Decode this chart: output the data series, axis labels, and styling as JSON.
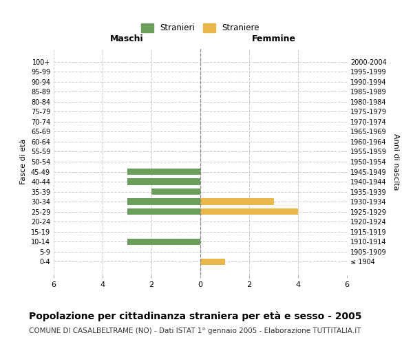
{
  "age_groups": [
    "100+",
    "95-99",
    "90-94",
    "85-89",
    "80-84",
    "75-79",
    "70-74",
    "65-69",
    "60-64",
    "55-59",
    "50-54",
    "45-49",
    "40-44",
    "35-39",
    "30-34",
    "25-29",
    "20-24",
    "15-19",
    "10-14",
    "5-9",
    "0-4"
  ],
  "birth_years": [
    "≤ 1904",
    "1905-1909",
    "1910-1914",
    "1915-1919",
    "1920-1924",
    "1925-1929",
    "1930-1934",
    "1935-1939",
    "1940-1944",
    "1945-1949",
    "1950-1954",
    "1955-1959",
    "1960-1964",
    "1965-1969",
    "1970-1974",
    "1975-1979",
    "1980-1984",
    "1985-1989",
    "1990-1994",
    "1995-1999",
    "2000-2004"
  ],
  "maschi": [
    0,
    0,
    0,
    0,
    0,
    0,
    0,
    0,
    0,
    0,
    0,
    3,
    3,
    2,
    3,
    3,
    0,
    0,
    3,
    0,
    0
  ],
  "femmine": [
    0,
    0,
    0,
    0,
    0,
    0,
    0,
    0,
    0,
    0,
    0,
    0,
    0,
    0,
    3,
    4,
    0,
    0,
    0,
    0,
    1
  ],
  "color_maschi": "#6A9E5A",
  "color_femmine": "#E8B84B",
  "xlim": 6,
  "xlabel_maschi": "Maschi",
  "xlabel_femmine": "Femmine",
  "ylabel_left": "Fasce di età",
  "ylabel_right": "Anni di nascita",
  "legend_stranieri": "Stranieri",
  "legend_straniere": "Straniere",
  "title": "Popolazione per cittadinanza straniera per età e sesso - 2005",
  "subtitle": "COMUNE DI CASALBELTRAME (NO) - Dati ISTAT 1° gennaio 2005 - Elaborazione TUTTITALIA.IT",
  "title_fontsize": 10,
  "subtitle_fontsize": 7.5,
  "bg_color": "#ffffff",
  "grid_color": "#cccccc"
}
